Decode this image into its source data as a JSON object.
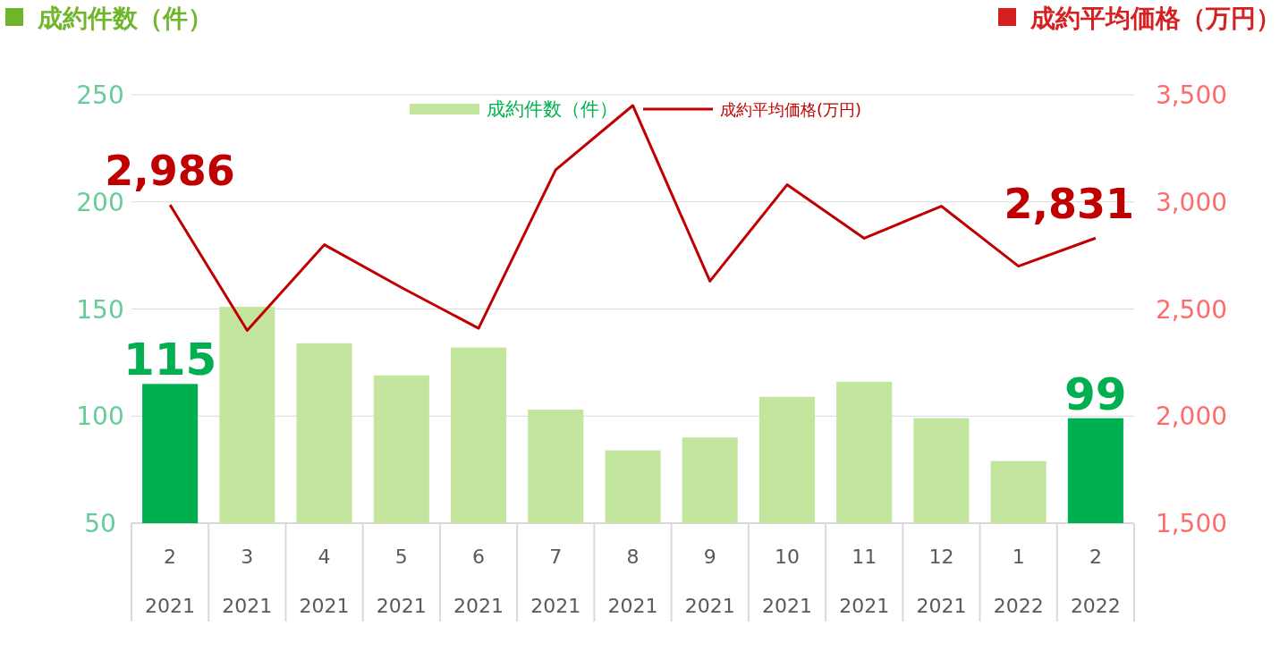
{
  "chart_data": {
    "type": "bar",
    "ylabel": "成約件数（件）",
    "y2label": "成約平均価格（万円）",
    "categories": [
      "2\n2021",
      "3\n2021",
      "4\n2021",
      "5\n2021",
      "6\n2021",
      "7\n2021",
      "8\n2021",
      "9\n2021",
      "10\n2021",
      "11\n2021",
      "12\n2021",
      "1\n2022",
      "2\n2022"
    ],
    "ylim": [
      50,
      250
    ],
    "yticks": [
      50,
      100,
      150,
      200,
      250
    ],
    "y2lim": [
      1500,
      3500
    ],
    "y2ticks": [
      {
        "value": 1500,
        "label": "1,500"
      },
      {
        "value": 2000,
        "label": "2,000"
      },
      {
        "value": 2500,
        "label": "2,500"
      },
      {
        "value": 3000,
        "label": "3,000"
      },
      {
        "value": 3500,
        "label": "3,500"
      }
    ],
    "grid": "y",
    "legend": "top",
    "series": [
      {
        "name": "成約件数（件）",
        "color": "#c3e59d",
        "colors": [
          "#00b050",
          "#c3e59d",
          "#c3e59d",
          "#c3e59d",
          "#c3e59d",
          "#c3e59d",
          "#c3e59d",
          "#c3e59d",
          "#c3e59d",
          "#c3e59d",
          "#c3e59d",
          "#c3e59d",
          "#00b050"
        ],
        "values": [
          115,
          151,
          134,
          119,
          132,
          103,
          84,
          90,
          109,
          116,
          99,
          79,
          99
        ],
        "value_labels": [
          "115",
          null,
          null,
          null,
          null,
          null,
          null,
          null,
          null,
          null,
          null,
          null,
          "99"
        ]
      },
      {
        "name": "成約平均価格(万円)",
        "type": "line",
        "axis": "y2",
        "color": "#c00000",
        "values": [
          2986,
          2400,
          2800,
          2600,
          2410,
          3150,
          3450,
          2630,
          3080,
          2830,
          2980,
          2700,
          2831
        ],
        "value_labels": [
          "2,986",
          null,
          null,
          null,
          null,
          null,
          null,
          null,
          null,
          null,
          null,
          null,
          "2,831"
        ]
      }
    ]
  }
}
